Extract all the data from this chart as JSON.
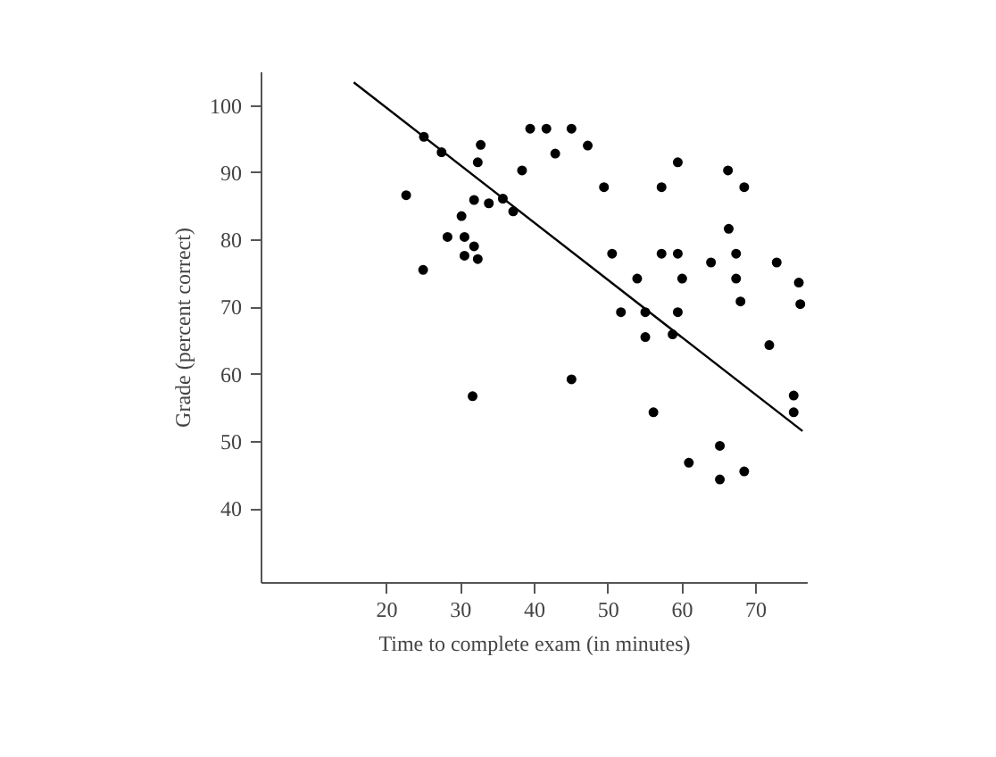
{
  "chart_data": {
    "type": "scatter",
    "xlabel": "Time to complete exam (in minutes)",
    "ylabel": "Grade (percent correct)",
    "xlim": [
      3,
      77
    ],
    "ylim": [
      29,
      105
    ],
    "xticks": [
      20,
      30,
      40,
      50,
      60,
      70
    ],
    "yticks": [
      40,
      50,
      60,
      70,
      80,
      90,
      100
    ],
    "grid": false,
    "series": [
      {
        "color": "#000000",
        "marker": "circle",
        "x": [
          25.0,
          27.4,
          32.7,
          32.3,
          22.6,
          31.8,
          33.8,
          35.7,
          37.1,
          30.1,
          28.2,
          30.5,
          31.8,
          30.5,
          32.3,
          24.9,
          31.6,
          39.4,
          41.6,
          45.0,
          47.2,
          42.8,
          38.3,
          59.4,
          66.2,
          68.4,
          49.4,
          57.2,
          66.3,
          50.5,
          57.2,
          59.4,
          67.3,
          63.9,
          72.8,
          53.9,
          60.0,
          67.3,
          75.8,
          67.9,
          76.0,
          51.7,
          55.0,
          59.4,
          55.0,
          58.7,
          71.8,
          45.0,
          56.1,
          75.1,
          75.1,
          65.1,
          60.9,
          65.1,
          68.4
        ],
        "values": [
          95.4,
          93.1,
          94.2,
          91.6,
          86.7,
          86.0,
          85.5,
          86.2,
          84.3,
          83.6,
          80.5,
          80.5,
          79.1,
          77.7,
          77.2,
          75.6,
          56.8,
          96.6,
          96.6,
          96.6,
          94.1,
          92.9,
          90.4,
          91.6,
          90.4,
          87.9,
          87.9,
          87.9,
          81.7,
          78.0,
          78.0,
          78.0,
          78.0,
          76.7,
          76.7,
          74.3,
          74.3,
          74.3,
          73.7,
          70.9,
          70.5,
          69.3,
          69.3,
          69.3,
          65.6,
          66.0,
          64.4,
          59.3,
          54.4,
          56.9,
          54.4,
          49.4,
          46.9,
          44.4,
          45.6
        ]
      },
      {
        "type": "line",
        "marker": "none",
        "color": "#000000",
        "x": [
          15.5,
          76.3
        ],
        "values": [
          103.5,
          51.6
        ]
      }
    ]
  }
}
